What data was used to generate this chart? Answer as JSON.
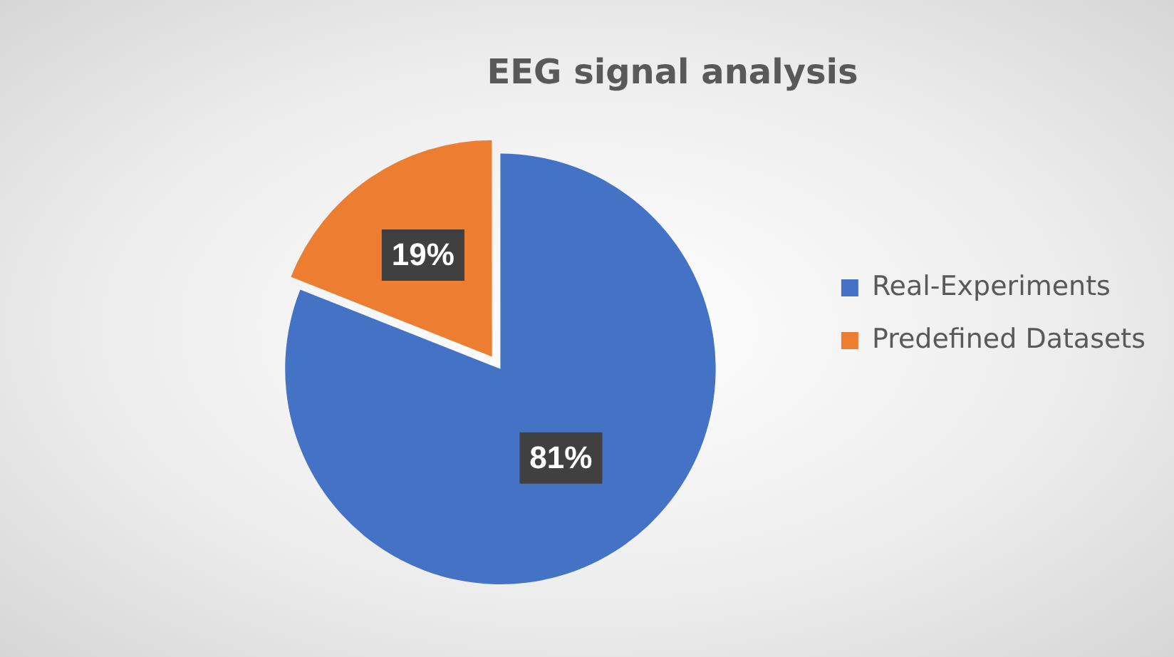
{
  "chart_data": {
    "type": "pie",
    "title": "EEG signal analysis",
    "categories": [
      "Real-Experiments",
      "Predefined Datasets"
    ],
    "values": [
      81,
      19
    ],
    "colors": [
      "#4472c4",
      "#ed7d31"
    ],
    "value_labels": [
      "81%",
      "19%"
    ],
    "legend": "right"
  }
}
